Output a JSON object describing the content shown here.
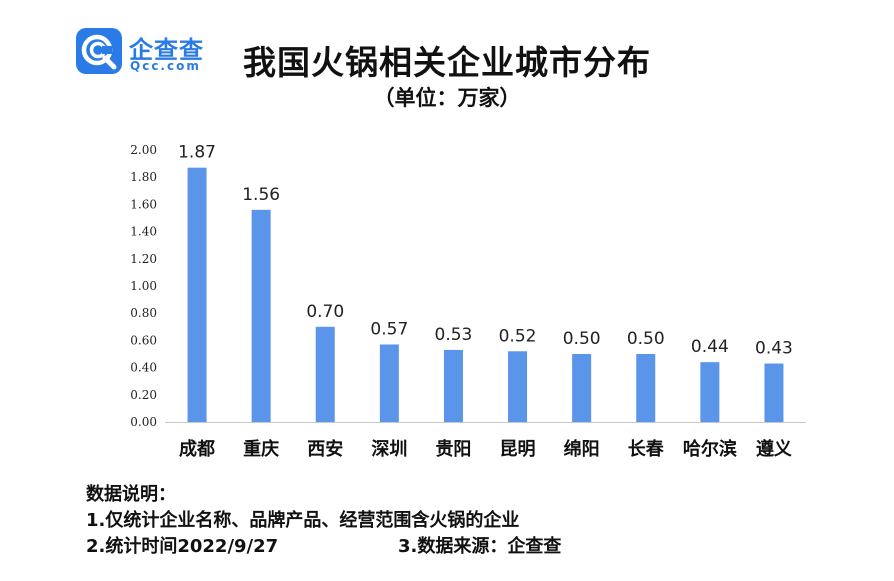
{
  "logo": {
    "icon": "qcc-logo-icon",
    "brand_color": "#2b7be6",
    "name": "企查查",
    "domain": "Qcc.com"
  },
  "chart_data": {
    "type": "bar",
    "title": "我国火锅相关企业城市分布",
    "subtitle": "（单位：万家）",
    "categories": [
      "成都",
      "重庆",
      "西安",
      "深圳",
      "贵阳",
      "昆明",
      "绵阳",
      "长春",
      "哈尔滨",
      "遵义"
    ],
    "values": [
      1.87,
      1.56,
      0.7,
      0.57,
      0.53,
      0.52,
      0.5,
      0.5,
      0.44,
      0.43
    ],
    "value_labels": [
      "1.87",
      "1.56",
      "0.70",
      "0.57",
      "0.53",
      "0.52",
      "0.50",
      "0.50",
      "0.44",
      "0.43"
    ],
    "y_ticks": [
      "0.00",
      "0.20",
      "0.40",
      "0.60",
      "0.80",
      "1.00",
      "1.20",
      "1.40",
      "1.60",
      "1.80",
      "2.00"
    ],
    "ylim": [
      0,
      2.0
    ],
    "grid": false,
    "bar_color": "#5b95ea",
    "axis_color": "#c8c8c8"
  },
  "notes": {
    "heading": "数据说明：",
    "line1": "1.仅统计企业名称、品牌产品、经营范围含火锅的企业",
    "line2": "2.统计时间2022/9/27",
    "line3": "3.数据来源：企查查"
  }
}
